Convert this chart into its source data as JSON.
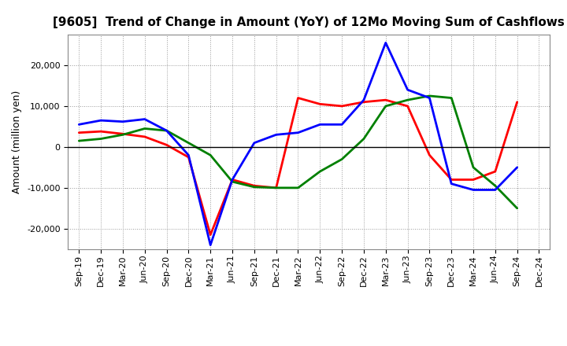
{
  "title": "[9605]  Trend of Change in Amount (YoY) of 12Mo Moving Sum of Cashflows",
  "ylabel": "Amount (million yen)",
  "x_labels": [
    "Sep-19",
    "Dec-19",
    "Mar-20",
    "Jun-20",
    "Sep-20",
    "Dec-20",
    "Mar-21",
    "Jun-21",
    "Sep-21",
    "Dec-21",
    "Mar-22",
    "Jun-22",
    "Sep-22",
    "Dec-22",
    "Mar-23",
    "Jun-23",
    "Sep-23",
    "Dec-23",
    "Mar-24",
    "Jun-24",
    "Sep-24",
    "Dec-24"
  ],
  "operating": [
    3500,
    3800,
    3200,
    2500,
    500,
    -2500,
    -21500,
    -8000,
    -9500,
    -10000,
    12000,
    10500,
    10000,
    11000,
    11500,
    10000,
    -2000,
    -8000,
    -8000,
    -6000,
    11000,
    null
  ],
  "investing": [
    1500,
    2000,
    3000,
    4500,
    4000,
    1000,
    -2000,
    -8500,
    -9800,
    -10000,
    -10000,
    -6000,
    -3000,
    2000,
    10000,
    11500,
    12500,
    12000,
    -5000,
    -9500,
    -15000,
    null
  ],
  "free": [
    5500,
    6500,
    6200,
    6800,
    4000,
    -2000,
    -24000,
    -8000,
    1000,
    3000,
    3500,
    5500,
    5500,
    11500,
    25500,
    14000,
    12000,
    -9000,
    -10500,
    -10500,
    -5000,
    null
  ],
  "operating_color": "#ff0000",
  "investing_color": "#008000",
  "free_color": "#0000ff",
  "ylim": [
    -25000,
    27500
  ],
  "yticks": [
    -20000,
    -10000,
    0,
    10000,
    20000
  ],
  "background_color": "#ffffff",
  "grid_color": "#999999",
  "title_fontsize": 11,
  "axis_fontsize": 8,
  "ylabel_fontsize": 9,
  "legend_fontsize": 9,
  "linewidth": 2.0
}
